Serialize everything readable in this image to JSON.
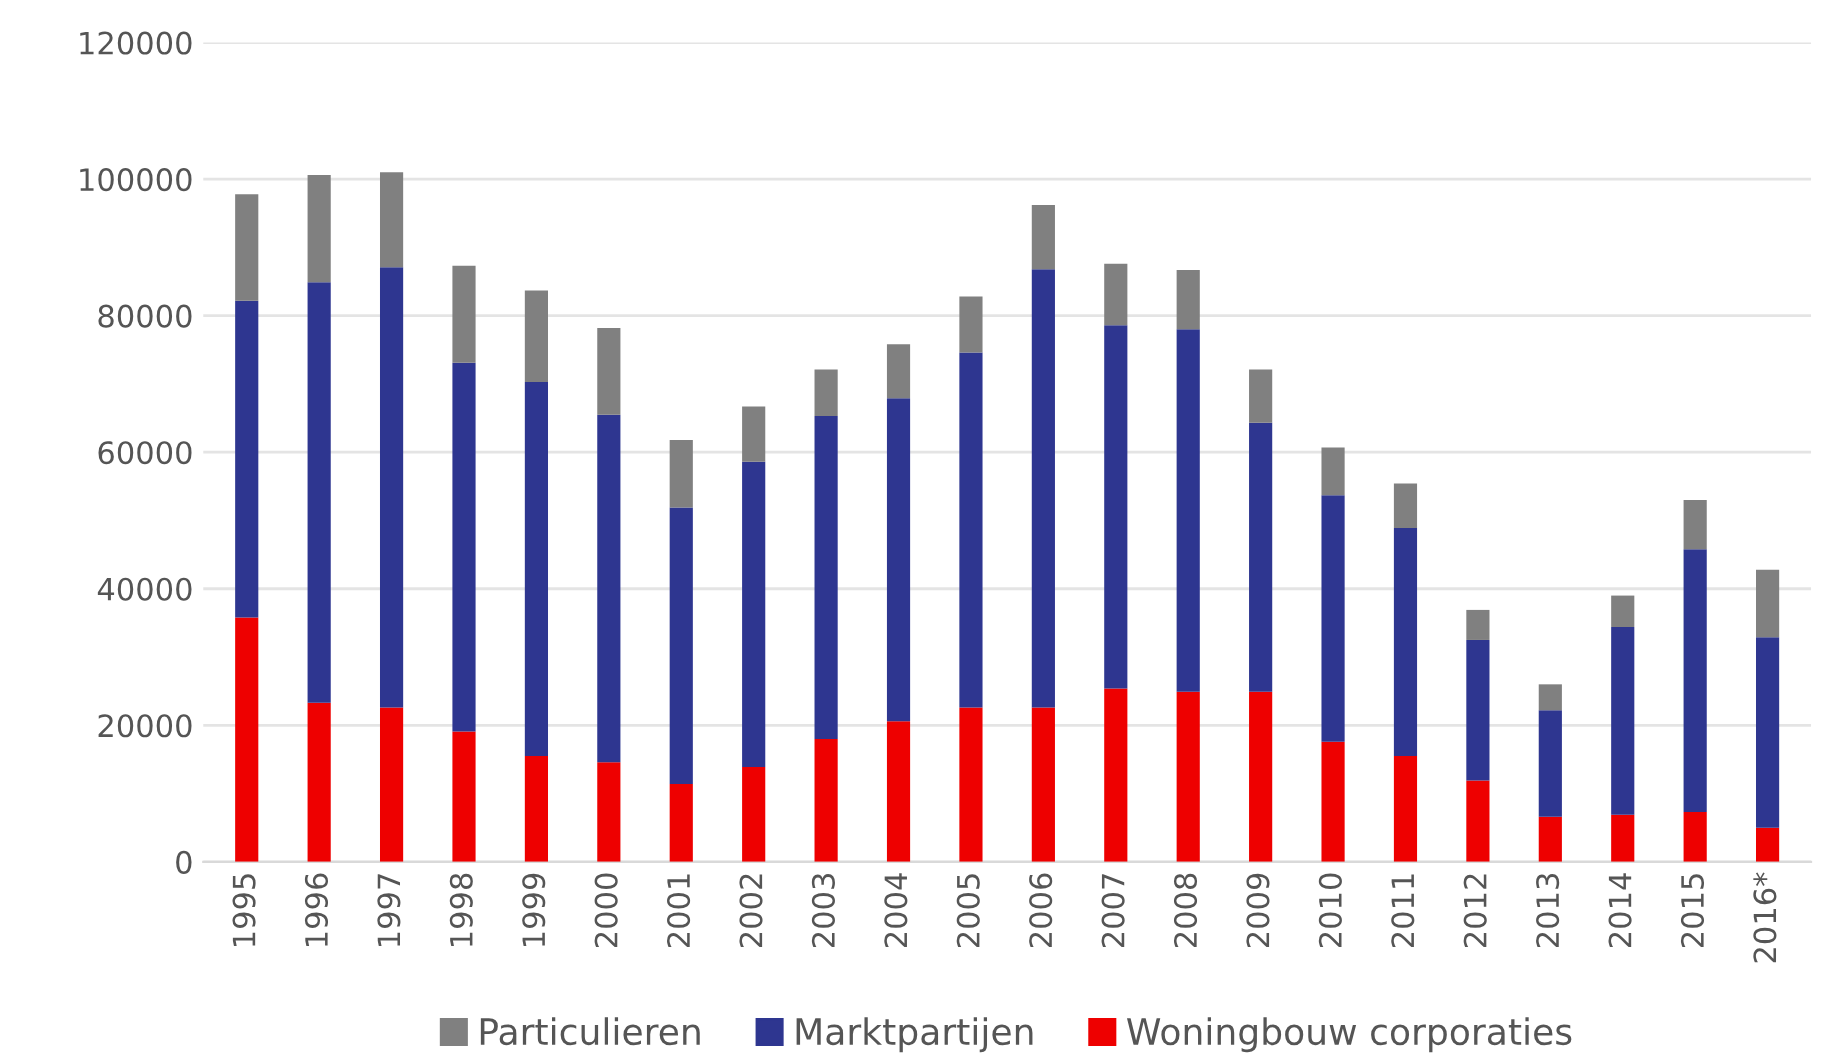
{
  "chart_data": {
    "type": "bar",
    "stacked": true,
    "categories": [
      "1995",
      "1996",
      "1997",
      "1998",
      "1999",
      "2000",
      "2001",
      "2002",
      "2003",
      "2004",
      "2005",
      "2006",
      "2007",
      "2008",
      "2009",
      "2010",
      "2011",
      "2012",
      "2013",
      "2014",
      "2015",
      "2016*"
    ],
    "series": [
      {
        "name": "Woningbouw corporaties",
        "color": "#ee0000",
        "values": [
          35800,
          23300,
          22600,
          19100,
          15500,
          14600,
          11400,
          13900,
          18000,
          20600,
          22600,
          22600,
          25400,
          24900,
          24900,
          17600,
          15500,
          11900,
          6600,
          6900,
          7300,
          5000
        ]
      },
      {
        "name": "Marktpartijen",
        "color": "#2e3690",
        "values": [
          46400,
          61600,
          64500,
          54000,
          54800,
          50900,
          40500,
          44700,
          47300,
          47300,
          52000,
          64200,
          53200,
          53100,
          39400,
          36100,
          33400,
          20600,
          15600,
          27500,
          38500,
          27900
        ]
      },
      {
        "name": "Particulieren",
        "color": "#808080",
        "values": [
          15600,
          15700,
          13900,
          14200,
          13400,
          12700,
          9900,
          8100,
          6800,
          7900,
          8200,
          9400,
          9000,
          8700,
          7800,
          7000,
          6500,
          4400,
          3800,
          4600,
          7200,
          9900
        ]
      }
    ],
    "ylim": [
      0,
      120000
    ],
    "yticks": [
      0,
      20000,
      40000,
      60000,
      80000,
      100000,
      120000
    ],
    "grid": "y",
    "legend": "bottom"
  }
}
